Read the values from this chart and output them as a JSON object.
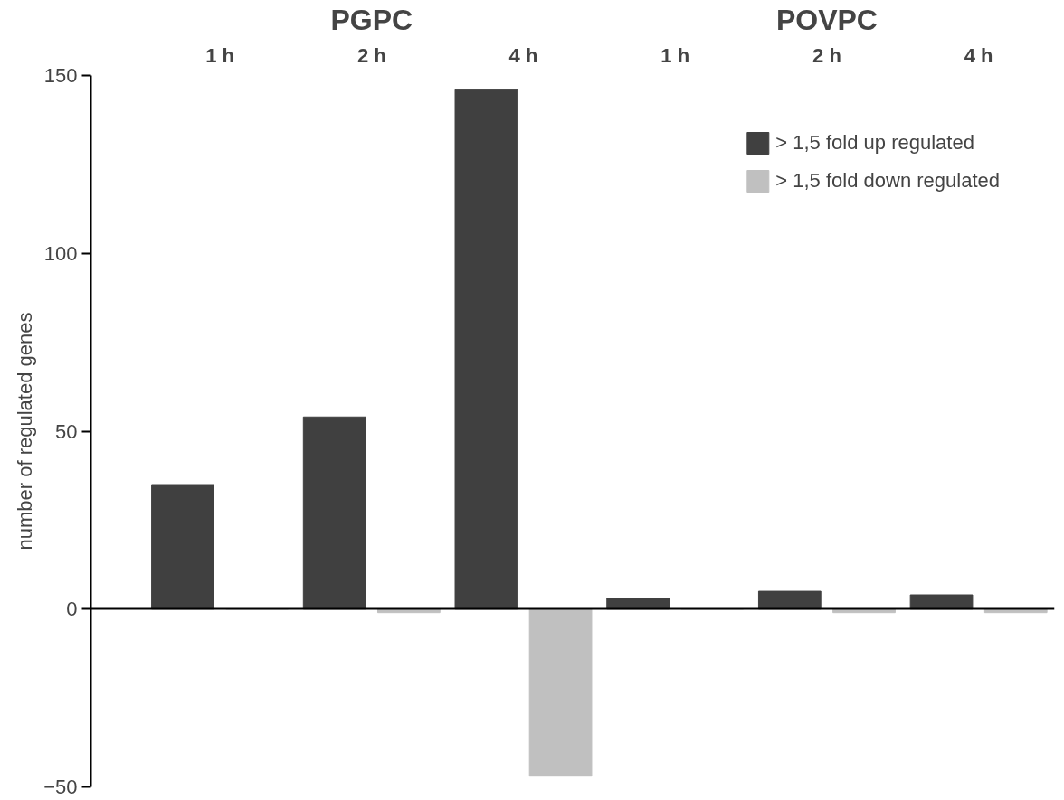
{
  "chart_data": {
    "type": "bar",
    "ylabel": "number of regulated genes",
    "categories": [
      "1 h",
      "2 h",
      "4 h",
      "1 h",
      "2 h",
      "4 h"
    ],
    "annotations": [
      "PGPC",
      "POVPC"
    ],
    "series": [
      {
        "name": "> 1,5 fold up regulated",
        "color": "#404040",
        "values": [
          35,
          54,
          146,
          3,
          5,
          4
        ]
      },
      {
        "name": "> 1,5 fold down regulated",
        "color": "#c0c0c0",
        "values": [
          0,
          -1,
          -47,
          0,
          -1,
          -1
        ]
      }
    ],
    "ylim": [
      -50,
      150
    ],
    "yticks": [
      -50,
      0,
      50,
      100,
      150
    ],
    "legend": "top right"
  }
}
